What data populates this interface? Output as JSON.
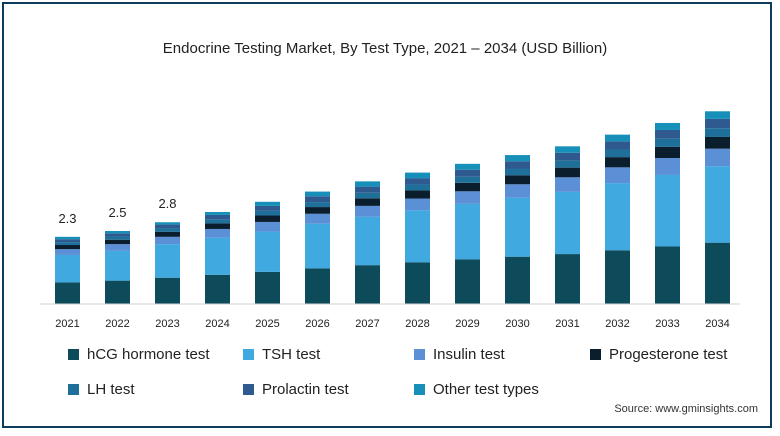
{
  "chart_data": {
    "type": "bar",
    "stacked": true,
    "title": "Endocrine Testing Market, By Test Type, 2021 – 2034 (USD Billion)",
    "xlabel": "",
    "ylabel": "",
    "categories": [
      "2021",
      "2022",
      "2023",
      "2024",
      "2025",
      "2026",
      "2027",
      "2028",
      "2029",
      "2030",
      "2031",
      "2032",
      "2033",
      "2034"
    ],
    "totals": [
      2.3,
      2.5,
      2.8,
      3.15,
      3.5,
      3.85,
      4.2,
      4.5,
      4.8,
      5.1,
      5.4,
      5.8,
      6.2,
      6.6
    ],
    "data_labels": [
      "2.3",
      "2.5",
      "2.8"
    ],
    "series": [
      {
        "name": "hCG hormone test",
        "color": "#0d4a5a",
        "values": [
          0.74,
          0.8,
          0.9,
          1.0,
          1.1,
          1.22,
          1.33,
          1.43,
          1.53,
          1.62,
          1.71,
          1.84,
          1.97,
          2.1
        ]
      },
      {
        "name": "TSH test",
        "color": "#3fa9e0",
        "values": [
          0.94,
          1.02,
          1.15,
          1.27,
          1.38,
          1.53,
          1.66,
          1.78,
          1.9,
          2.02,
          2.13,
          2.3,
          2.45,
          2.62
        ]
      },
      {
        "name": "Insulin test",
        "color": "#5b8fd6",
        "values": [
          0.2,
          0.23,
          0.25,
          0.3,
          0.33,
          0.34,
          0.37,
          0.4,
          0.43,
          0.46,
          0.5,
          0.54,
          0.58,
          0.6
        ]
      },
      {
        "name": "Progesterone test",
        "color": "#0b1e2e",
        "values": [
          0.14,
          0.15,
          0.17,
          0.19,
          0.22,
          0.23,
          0.26,
          0.28,
          0.29,
          0.31,
          0.33,
          0.35,
          0.38,
          0.4
        ]
      },
      {
        "name": "LH test",
        "color": "#1e6f99",
        "values": [
          0.1,
          0.11,
          0.13,
          0.14,
          0.16,
          0.17,
          0.19,
          0.2,
          0.21,
          0.23,
          0.24,
          0.26,
          0.28,
          0.3
        ]
      },
      {
        "name": "Prolactin test",
        "color": "#2f5a8f",
        "values": [
          0.1,
          0.11,
          0.12,
          0.15,
          0.17,
          0.2,
          0.21,
          0.22,
          0.24,
          0.25,
          0.27,
          0.28,
          0.3,
          0.32
        ]
      },
      {
        "name": "Other test types",
        "color": "#1690b8",
        "values": [
          0.08,
          0.08,
          0.08,
          0.1,
          0.14,
          0.16,
          0.18,
          0.19,
          0.2,
          0.21,
          0.22,
          0.23,
          0.24,
          0.26
        ]
      }
    ],
    "ylim": [
      0,
      7
    ],
    "grid": false,
    "legend_position": "bottom"
  },
  "source": "Source: www.gminsights.com"
}
